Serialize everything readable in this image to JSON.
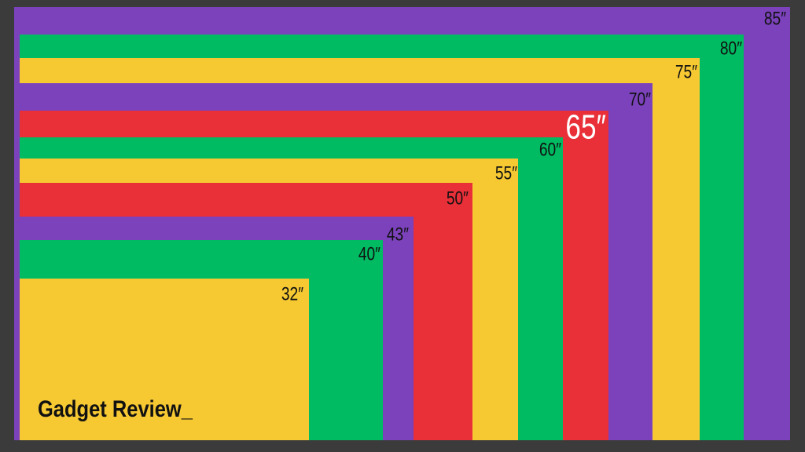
{
  "sizes": [
    {
      "label": "85″"
    },
    {
      "label": "80″"
    },
    {
      "label": "75″"
    },
    {
      "label": "70″"
    },
    {
      "label": "65″"
    },
    {
      "label": "60″"
    },
    {
      "label": "55″"
    },
    {
      "label": "50″"
    },
    {
      "label": "43″"
    },
    {
      "label": "40″"
    },
    {
      "label": "32″"
    }
  ],
  "brand": "Gadget Review_"
}
